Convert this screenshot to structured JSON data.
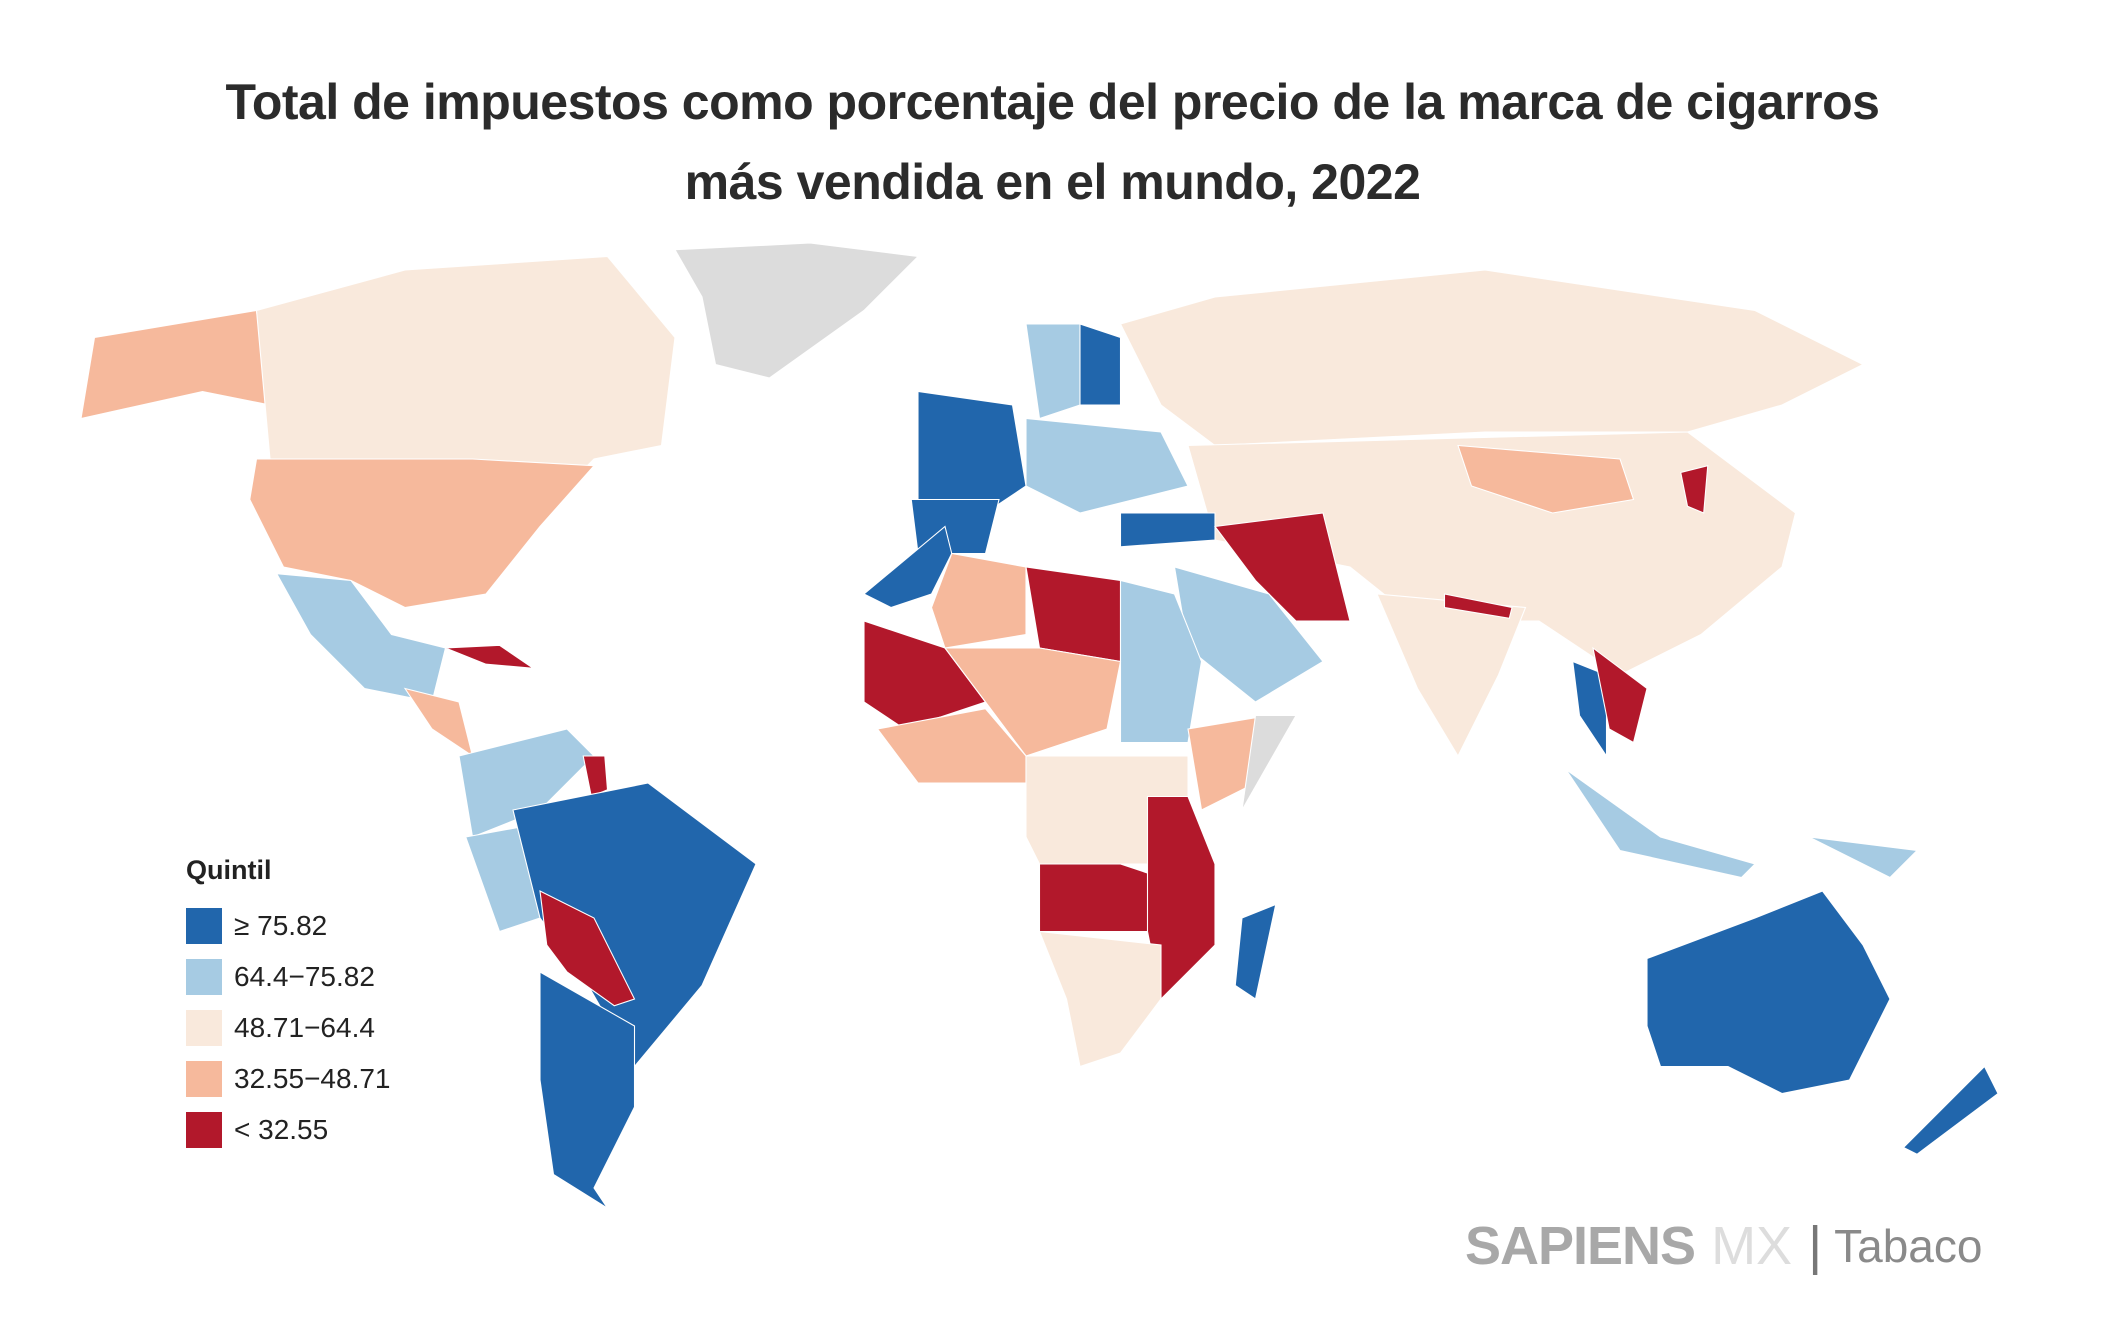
{
  "title": {
    "line1": "Total de impuestos como porcentaje del precio de la marca de cigarros",
    "line2": "más vendida en el mundo, 2022"
  },
  "legend": {
    "title": "Quintil",
    "items": [
      {
        "label": "≥ 75.82",
        "color": "#2166ac"
      },
      {
        "label": "64.4−75.82",
        "color": "#a6cbe3"
      },
      {
        "label": "48.71−64.4",
        "color": "#f9e9dc"
      },
      {
        "label": "32.55−48.71",
        "color": "#f6b99c"
      },
      {
        "label": "< 32.55",
        "color": "#b2182b"
      }
    ],
    "no_data_color": "#dcdcdc"
  },
  "brand": {
    "name": "SAPIENS",
    "suffix": "MX",
    "separator": "|",
    "section": "Tabaco"
  }
}
